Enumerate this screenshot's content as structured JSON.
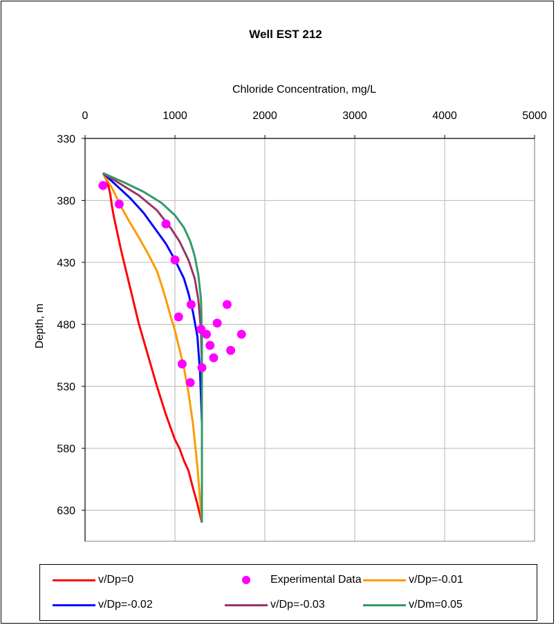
{
  "chart_data": {
    "type": "line",
    "title": "Well EST 212",
    "xlabel": "Chloride Concentration, mg/L",
    "ylabel": "Depth, m",
    "xlim": [
      0,
      5000
    ],
    "ylim": [
      330,
      655
    ],
    "y_inverted": true,
    "x_ticks": [
      "0",
      "1000",
      "2000",
      "3000",
      "4000",
      "5000"
    ],
    "y_ticks": [
      "330",
      "380",
      "430",
      "480",
      "530",
      "580",
      "630"
    ],
    "x_tick_values": [
      0,
      1000,
      2000,
      3000,
      4000,
      5000
    ],
    "y_tick_values": [
      330,
      380,
      430,
      480,
      530,
      580,
      630
    ],
    "grid": true,
    "x_axis_position": "top",
    "legend_position": "bottom",
    "series": [
      {
        "name": "v/Dp=0",
        "color": "#ff0000",
        "kind": "line",
        "x": [
          200,
          250,
          280,
          300,
          320,
          400,
          500,
          600,
          700,
          800,
          900,
          1000,
          1050,
          1100,
          1150,
          1200,
          1250,
          1300
        ],
        "y": [
          358,
          365,
          375,
          385,
          393,
          420,
          450,
          480,
          505,
          530,
          553,
          573,
          580,
          590,
          598,
          612,
          625,
          640
        ]
      },
      {
        "name": "Experimental Data",
        "color": "#ff00ff",
        "kind": "scatter",
        "x": [
          200,
          380,
          900,
          1000,
          1180,
          1040,
          1580,
          1470,
          1290,
          1350,
          1740,
          1390,
          1620,
          1430,
          1080,
          1300,
          1170
        ],
        "y": [
          368,
          383,
          399,
          428,
          464,
          474,
          464,
          479,
          484,
          488,
          488,
          497,
          501,
          507,
          512,
          515,
          527
        ]
      },
      {
        "name": "v/Dp=-0.01",
        "color": "#ff9900",
        "kind": "line",
        "x": [
          200,
          300,
          400,
          500,
          600,
          700,
          800,
          850,
          900,
          950,
          1000,
          1050,
          1100,
          1150,
          1200,
          1250,
          1300
        ],
        "y": [
          358,
          370,
          385,
          398,
          410,
          423,
          437,
          448,
          460,
          473,
          485,
          500,
          515,
          535,
          560,
          595,
          640
        ]
      },
      {
        "name": "v/Dp=-0.02",
        "color": "#0000ff",
        "kind": "line",
        "x": [
          200,
          350,
          500,
          650,
          800,
          900,
          1000,
          1100,
          1150,
          1200,
          1250,
          1280,
          1300
        ],
        "y": [
          358,
          368,
          378,
          390,
          405,
          415,
          428,
          443,
          455,
          470,
          490,
          520,
          560
        ]
      },
      {
        "name": "v/Dp=-0.03",
        "color": "#993366",
        "kind": "line",
        "x": [
          200,
          400,
          600,
          800,
          950,
          1050,
          1150,
          1220,
          1260,
          1290,
          1300,
          1300
        ],
        "y": [
          358,
          367,
          376,
          388,
          402,
          413,
          428,
          443,
          460,
          485,
          520,
          560
        ]
      },
      {
        "name": "v/Dm=0.05",
        "color": "#339966",
        "kind": "line",
        "x": [
          200,
          450,
          650,
          850,
          1000,
          1100,
          1170,
          1220,
          1260,
          1290,
          1300,
          1300,
          1300
        ],
        "y": [
          358,
          366,
          373,
          382,
          392,
          402,
          413,
          425,
          440,
          460,
          490,
          560,
          640
        ]
      }
    ]
  }
}
